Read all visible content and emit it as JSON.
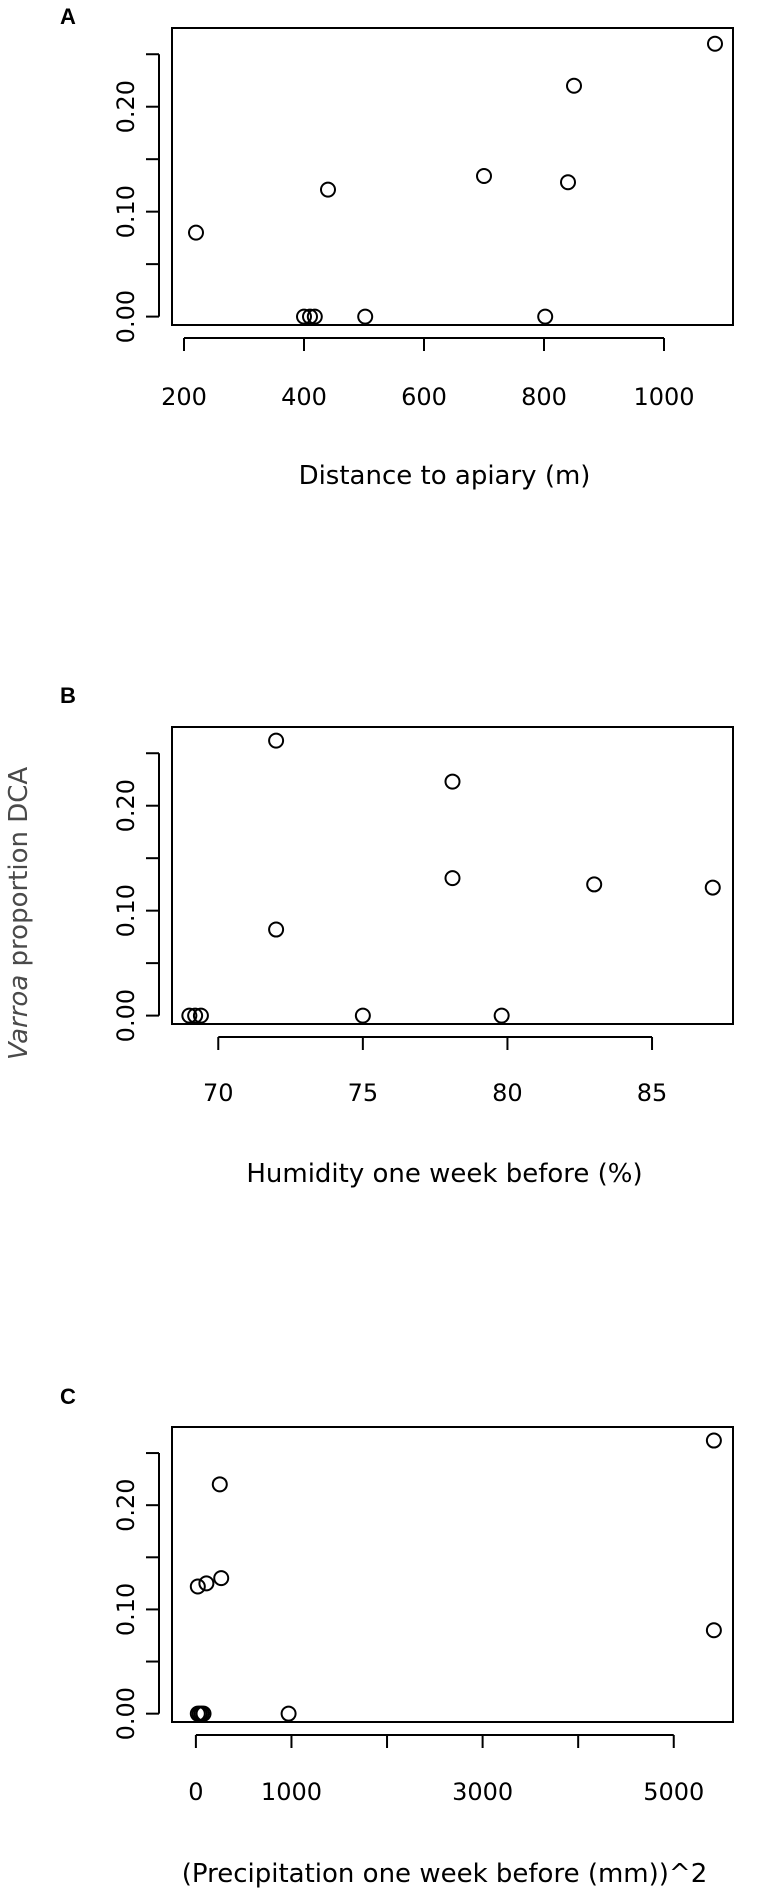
{
  "ylabel": {
    "italic": "Varroa",
    "rest": " proportion DCA"
  },
  "chart_data": [
    {
      "type": "scatter",
      "panel": "A",
      "xlabel": "Distance to apiary (m)",
      "xlim": [
        180,
        1115
      ],
      "ylim": [
        -0.008,
        0.275
      ],
      "xticks": [
        200,
        400,
        600,
        800,
        1000
      ],
      "xtick_labels": [
        "200",
        "400",
        "600",
        "800",
        "1000"
      ],
      "yticks": [
        0.0,
        0.05,
        0.1,
        0.15,
        0.2,
        0.25
      ],
      "ytick_labels": [
        "0.00",
        "",
        "0.10",
        "",
        "0.20",
        ""
      ],
      "points": [
        {
          "x": 220,
          "y": 0.08
        },
        {
          "x": 400,
          "y": 0.0
        },
        {
          "x": 410,
          "y": 0.0
        },
        {
          "x": 418,
          "y": 0.0
        },
        {
          "x": 440,
          "y": 0.121
        },
        {
          "x": 502,
          "y": 0.0
        },
        {
          "x": 700,
          "y": 0.134
        },
        {
          "x": 802,
          "y": 0.0
        },
        {
          "x": 840,
          "y": 0.128
        },
        {
          "x": 850,
          "y": 0.22
        },
        {
          "x": 1085,
          "y": 0.26
        }
      ]
    },
    {
      "type": "scatter",
      "panel": "B",
      "xlabel": "Humidity one week before (%)",
      "xlim": [
        68.4,
        87.8
      ],
      "ylim": [
        -0.008,
        0.275
      ],
      "xticks": [
        70,
        75,
        80,
        85
      ],
      "xtick_labels": [
        "70",
        "75",
        "80",
        "85"
      ],
      "yticks": [
        0.0,
        0.05,
        0.1,
        0.15,
        0.2,
        0.25
      ],
      "ytick_labels": [
        "0.00",
        "",
        "0.10",
        "",
        "0.20",
        ""
      ],
      "points": [
        {
          "x": 69.0,
          "y": 0.0
        },
        {
          "x": 69.2,
          "y": 0.0
        },
        {
          "x": 69.4,
          "y": 0.0
        },
        {
          "x": 72.0,
          "y": 0.082
        },
        {
          "x": 72.0,
          "y": 0.262
        },
        {
          "x": 75.0,
          "y": 0.0
        },
        {
          "x": 78.1,
          "y": 0.131
        },
        {
          "x": 78.1,
          "y": 0.223
        },
        {
          "x": 79.8,
          "y": 0.0
        },
        {
          "x": 83.0,
          "y": 0.125
        },
        {
          "x": 87.1,
          "y": 0.122
        }
      ]
    },
    {
      "type": "scatter",
      "panel": "C",
      "xlabel": "(Precipitation one week before (mm))^2",
      "xlim": [
        -250,
        5620
      ],
      "ylim": [
        -0.008,
        0.275
      ],
      "xticks": [
        0,
        1000,
        2000,
        3000,
        4000,
        5000
      ],
      "xtick_labels": [
        "0",
        "1000",
        "",
        "3000",
        "",
        "5000"
      ],
      "yticks": [
        0.0,
        0.05,
        0.1,
        0.15,
        0.2,
        0.25
      ],
      "ytick_labels": [
        "0.00",
        "",
        "0.10",
        "",
        "0.20",
        ""
      ],
      "points": [
        {
          "x": 20,
          "y": 0.0
        },
        {
          "x": 40,
          "y": 0.0
        },
        {
          "x": 60,
          "y": 0.0
        },
        {
          "x": 80,
          "y": 0.0
        },
        {
          "x": 20,
          "y": 0.122
        },
        {
          "x": 110,
          "y": 0.125
        },
        {
          "x": 265,
          "y": 0.13
        },
        {
          "x": 250,
          "y": 0.22
        },
        {
          "x": 970,
          "y": 0.0
        },
        {
          "x": 5420,
          "y": 0.08
        },
        {
          "x": 5420,
          "y": 0.262
        }
      ]
    }
  ]
}
